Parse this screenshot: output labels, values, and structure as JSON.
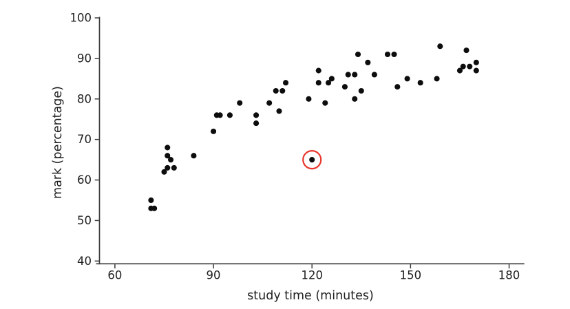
{
  "chart_data": {
    "type": "scatter",
    "title": "",
    "xlabel": "study time (minutes)",
    "ylabel": "mark (percentage)",
    "xlim": [
      55,
      185
    ],
    "ylim": [
      39,
      100.5
    ],
    "xticks": [
      60,
      90,
      120,
      150,
      180
    ],
    "yticks": [
      40,
      50,
      60,
      70,
      80,
      90,
      100
    ],
    "grid": false,
    "legend": "none",
    "points": [
      [
        71,
        55
      ],
      [
        71,
        53
      ],
      [
        72,
        53
      ],
      [
        75,
        62
      ],
      [
        76,
        68
      ],
      [
        76,
        66
      ],
      [
        76,
        63
      ],
      [
        77,
        65
      ],
      [
        78,
        63
      ],
      [
        84,
        66
      ],
      [
        90,
        72
      ],
      [
        91,
        76
      ],
      [
        92,
        76
      ],
      [
        95,
        76
      ],
      [
        98,
        79
      ],
      [
        103,
        76
      ],
      [
        103,
        74
      ],
      [
        107,
        79
      ],
      [
        109,
        82
      ],
      [
        110,
        77
      ],
      [
        111,
        82
      ],
      [
        112,
        84
      ],
      [
        119,
        80
      ],
      [
        120,
        65
      ],
      [
        122,
        84
      ],
      [
        122,
        87
      ],
      [
        124,
        79
      ],
      [
        125,
        84
      ],
      [
        126,
        85
      ],
      [
        130,
        83
      ],
      [
        131,
        86
      ],
      [
        133,
        80
      ],
      [
        133,
        86
      ],
      [
        134,
        91
      ],
      [
        135,
        82
      ],
      [
        137,
        89
      ],
      [
        139,
        86
      ],
      [
        143,
        91
      ],
      [
        145,
        91
      ],
      [
        146,
        83
      ],
      [
        149,
        85
      ],
      [
        153,
        84
      ],
      [
        158,
        85
      ],
      [
        159,
        93
      ],
      [
        165,
        87
      ],
      [
        166,
        88
      ],
      [
        167,
        92
      ],
      [
        168,
        88
      ],
      [
        170,
        87
      ],
      [
        170,
        89
      ]
    ],
    "highlighted_point": {
      "x": 120,
      "y": 65,
      "marker": "red-circle-outline"
    },
    "colors": {
      "point": "#0d0d0d",
      "highlight_ring": "#e8382d",
      "axis": "#3a3a3a",
      "text": "#1f1f1f",
      "background": "#ffffff"
    }
  }
}
